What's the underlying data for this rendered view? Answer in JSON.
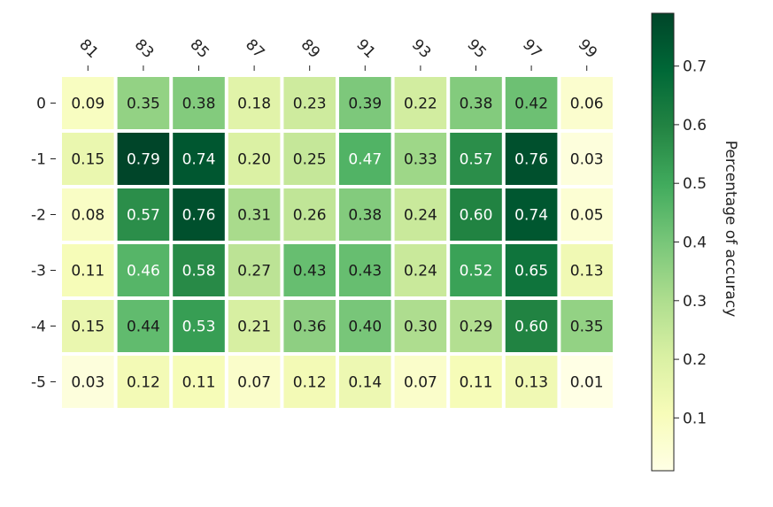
{
  "chart_data": {
    "type": "heatmap",
    "title": "",
    "xlabel": "",
    "ylabel": "",
    "x_categories": [
      "81",
      "83",
      "85",
      "87",
      "89",
      "91",
      "93",
      "95",
      "97",
      "99"
    ],
    "y_categories": [
      "0",
      "-1",
      "-2",
      "-3",
      "-4",
      "-5"
    ],
    "values": [
      [
        0.09,
        0.35,
        0.38,
        0.18,
        0.23,
        0.39,
        0.22,
        0.38,
        0.42,
        0.06
      ],
      [
        0.15,
        0.79,
        0.74,
        0.2,
        0.25,
        0.47,
        0.33,
        0.57,
        0.76,
        0.03
      ],
      [
        0.08,
        0.57,
        0.76,
        0.31,
        0.26,
        0.38,
        0.24,
        0.6,
        0.74,
        0.05
      ],
      [
        0.11,
        0.46,
        0.58,
        0.27,
        0.43,
        0.43,
        0.24,
        0.52,
        0.65,
        0.13
      ],
      [
        0.15,
        0.44,
        0.53,
        0.21,
        0.36,
        0.4,
        0.3,
        0.29,
        0.6,
        0.35
      ],
      [
        0.03,
        0.12,
        0.11,
        0.07,
        0.12,
        0.14,
        0.07,
        0.11,
        0.13,
        0.01
      ]
    ],
    "value_range": [
      0.01,
      0.79
    ],
    "colormap": "YlGn",
    "colorbar": {
      "label": "Percentage of accuracy",
      "ticks": [
        "0.1",
        "0.2",
        "0.3",
        "0.4",
        "0.5",
        "0.6",
        "0.7"
      ],
      "placement": "right"
    },
    "x_tick_position": "top",
    "grid": false
  }
}
